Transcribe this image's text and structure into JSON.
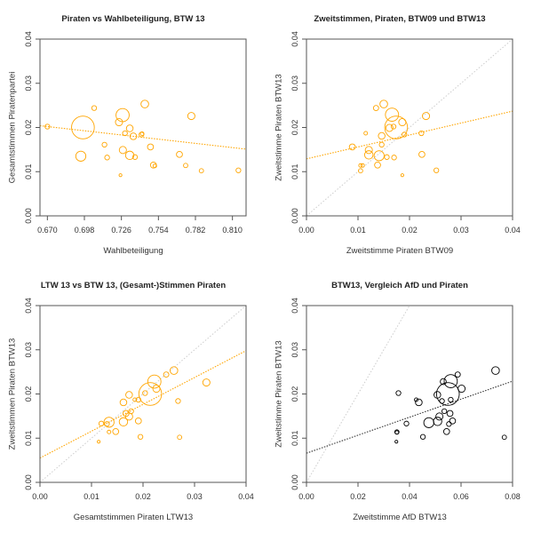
{
  "chart_data": [
    {
      "type": "scatter",
      "title": "Piraten vs Wahlbeteiligung, BTW 13",
      "xlabel": "Wahlbeteiligung",
      "ylabel": "Gesamtstimmen Piratenpartei",
      "xlim": [
        0.6644,
        0.8203
      ],
      "ylim": [
        0,
        0.04
      ],
      "xticks": [
        "0.670",
        "0.698",
        "0.726",
        "0.754",
        "0.782",
        "0.810"
      ],
      "yticks": [
        "0.00",
        "0.01",
        "0.02",
        "0.03",
        "0.04"
      ],
      "color": "#FFA500",
      "grid": false,
      "points": [
        {
          "x": 0.67,
          "y": 0.0202,
          "size": 1.0
        },
        {
          "x": 0.6969,
          "y": 0.02,
          "size": 4.75
        },
        {
          "x": 0.6953,
          "y": 0.0135,
          "size": 2.1
        },
        {
          "x": 0.7054,
          "y": 0.0244,
          "size": 1.0
        },
        {
          "x": 0.7132,
          "y": 0.0161,
          "size": 1.0
        },
        {
          "x": 0.7152,
          "y": 0.0132,
          "size": 1.0
        },
        {
          "x": 0.7242,
          "y": 0.0212,
          "size": 1.5
        },
        {
          "x": 0.7269,
          "y": 0.0228,
          "size": 2.75
        },
        {
          "x": 0.7253,
          "y": 0.0092,
          "size": 0.6
        },
        {
          "x": 0.7271,
          "y": 0.0149,
          "size": 1.5
        },
        {
          "x": 0.7287,
          "y": 0.0187,
          "size": 1.0
        },
        {
          "x": 0.7323,
          "y": 0.0198,
          "size": 1.4
        },
        {
          "x": 0.7323,
          "y": 0.0137,
          "size": 1.75
        },
        {
          "x": 0.735,
          "y": 0.018,
          "size": 1.4
        },
        {
          "x": 0.7363,
          "y": 0.0133,
          "size": 1.0
        },
        {
          "x": 0.7412,
          "y": 0.0184,
          "size": 1.0
        },
        {
          "x": 0.7417,
          "y": 0.0186,
          "size": 0.75
        },
        {
          "x": 0.7437,
          "y": 0.0253,
          "size": 1.6
        },
        {
          "x": 0.748,
          "y": 0.0156,
          "size": 1.25
        },
        {
          "x": 0.7502,
          "y": 0.0115,
          "size": 1.25
        },
        {
          "x": 0.7513,
          "y": 0.0113,
          "size": 0.75
        },
        {
          "x": 0.7699,
          "y": 0.0139,
          "size": 1.25
        },
        {
          "x": 0.7746,
          "y": 0.0114,
          "size": 0.9
        },
        {
          "x": 0.7789,
          "y": 0.0226,
          "size": 1.5
        },
        {
          "x": 0.7865,
          "y": 0.0102,
          "size": 0.9
        },
        {
          "x": 0.8145,
          "y": 0.0103,
          "size": 1.0
        }
      ],
      "trend": {
        "x": [
          0.6644,
          0.8203
        ],
        "y": [
          0.0204,
          0.0151
        ],
        "color": "#FFA500"
      },
      "reference_lines": []
    },
    {
      "type": "scatter",
      "title": "Zweitstimmen, Piraten, BTW09 und BTW13",
      "xlabel": "Zweitstimme Piraten BTW09",
      "ylabel": "Zweitstimme Piraten BTW13",
      "xlim": [
        0,
        0.04
      ],
      "ylim": [
        0,
        0.04
      ],
      "xticks": [
        "0.00",
        "0.01",
        "0.02",
        "0.03",
        "0.04"
      ],
      "yticks": [
        "0.00",
        "0.01",
        "0.02",
        "0.03",
        "0.04"
      ],
      "color": "#FFA500",
      "grid": false,
      "points": [
        {
          "x": 0.0089,
          "y": 0.0156,
          "size": 1.25
        },
        {
          "x": 0.0105,
          "y": 0.0114,
          "size": 0.75
        },
        {
          "x": 0.0109,
          "y": 0.0114,
          "size": 0.75
        },
        {
          "x": 0.0105,
          "y": 0.0102,
          "size": 0.9
        },
        {
          "x": 0.0115,
          "y": 0.0187,
          "size": 0.75
        },
        {
          "x": 0.0121,
          "y": 0.0149,
          "size": 1.5
        },
        {
          "x": 0.0121,
          "y": 0.0138,
          "size": 1.75
        },
        {
          "x": 0.0135,
          "y": 0.0244,
          "size": 1.1
        },
        {
          "x": 0.0138,
          "y": 0.0115,
          "size": 1.25
        },
        {
          "x": 0.0141,
          "y": 0.0136,
          "size": 2.1
        },
        {
          "x": 0.0146,
          "y": 0.0181,
          "size": 1.4
        },
        {
          "x": 0.0146,
          "y": 0.0161,
          "size": 1.0
        },
        {
          "x": 0.015,
          "y": 0.0253,
          "size": 1.6
        },
        {
          "x": 0.0156,
          "y": 0.0133,
          "size": 1.0
        },
        {
          "x": 0.0161,
          "y": 0.0199,
          "size": 1.5
        },
        {
          "x": 0.0166,
          "y": 0.0229,
          "size": 2.75
        },
        {
          "x": 0.0169,
          "y": 0.0202,
          "size": 1.0
        },
        {
          "x": 0.017,
          "y": 0.0132,
          "size": 1.0
        },
        {
          "x": 0.0174,
          "y": 0.02,
          "size": 4.75
        },
        {
          "x": 0.0186,
          "y": 0.0212,
          "size": 1.5
        },
        {
          "x": 0.0186,
          "y": 0.0092,
          "size": 0.6
        },
        {
          "x": 0.019,
          "y": 0.0184,
          "size": 1.0
        },
        {
          "x": 0.0223,
          "y": 0.0187,
          "size": 1.0
        },
        {
          "x": 0.0224,
          "y": 0.0139,
          "size": 1.25
        },
        {
          "x": 0.0232,
          "y": 0.0226,
          "size": 1.5
        },
        {
          "x": 0.0252,
          "y": 0.0103,
          "size": 1.0
        }
      ],
      "trend": {
        "x": [
          0,
          0.04
        ],
        "y": [
          0.0129,
          0.0237
        ],
        "color": "#FFA500"
      },
      "reference_lines": [
        {
          "x": [
            0,
            0.04
          ],
          "y": [
            0,
            0.04
          ],
          "color": "#cccccc"
        }
      ]
    },
    {
      "type": "scatter",
      "title": "LTW 13 vs BTW 13, (Gesamt-)Stimmen Piraten",
      "xlabel": "Gesamtstimmen Piraten LTW13",
      "ylabel": "Zweitstimmen Piraten BTW13",
      "xlim": [
        0,
        0.04
      ],
      "ylim": [
        0,
        0.04
      ],
      "xticks": [
        "0.00",
        "0.01",
        "0.02",
        "0.03",
        "0.04"
      ],
      "yticks": [
        "0.00",
        "0.01",
        "0.02",
        "0.03",
        "0.04"
      ],
      "color": "#FFA500",
      "grid": false,
      "points": [
        {
          "x": 0.0114,
          "y": 0.0092,
          "size": 0.6
        },
        {
          "x": 0.0119,
          "y": 0.0133,
          "size": 1.0
        },
        {
          "x": 0.013,
          "y": 0.0132,
          "size": 1.0
        },
        {
          "x": 0.0134,
          "y": 0.0136,
          "size": 2.1
        },
        {
          "x": 0.0134,
          "y": 0.0114,
          "size": 0.75
        },
        {
          "x": 0.0147,
          "y": 0.0115,
          "size": 1.25
        },
        {
          "x": 0.0162,
          "y": 0.0181,
          "size": 1.4
        },
        {
          "x": 0.0162,
          "y": 0.0137,
          "size": 1.75
        },
        {
          "x": 0.0167,
          "y": 0.0156,
          "size": 1.25
        },
        {
          "x": 0.0173,
          "y": 0.0149,
          "size": 1.5
        },
        {
          "x": 0.0173,
          "y": 0.0198,
          "size": 1.4
        },
        {
          "x": 0.0177,
          "y": 0.0161,
          "size": 1.0
        },
        {
          "x": 0.0184,
          "y": 0.0187,
          "size": 0.75
        },
        {
          "x": 0.0191,
          "y": 0.0187,
          "size": 1.0
        },
        {
          "x": 0.0191,
          "y": 0.0139,
          "size": 1.25
        },
        {
          "x": 0.0195,
          "y": 0.0103,
          "size": 1.0
        },
        {
          "x": 0.0204,
          "y": 0.0202,
          "size": 1.0
        },
        {
          "x": 0.0214,
          "y": 0.02,
          "size": 4.75
        },
        {
          "x": 0.0222,
          "y": 0.0228,
          "size": 2.75
        },
        {
          "x": 0.0226,
          "y": 0.0212,
          "size": 1.5
        },
        {
          "x": 0.0245,
          "y": 0.0244,
          "size": 1.1
        },
        {
          "x": 0.026,
          "y": 0.0253,
          "size": 1.6
        },
        {
          "x": 0.0268,
          "y": 0.0184,
          "size": 1.0
        },
        {
          "x": 0.0271,
          "y": 0.0102,
          "size": 0.9
        },
        {
          "x": 0.0323,
          "y": 0.0226,
          "size": 1.5
        }
      ],
      "trend": {
        "x": [
          0,
          0.04
        ],
        "y": [
          0.0055,
          0.0298
        ],
        "color": "#FFA500"
      },
      "reference_lines": [
        {
          "x": [
            0,
            0.04
          ],
          "y": [
            0,
            0.04
          ],
          "color": "#cccccc"
        }
      ]
    },
    {
      "type": "scatter",
      "title": "BTW13, Vergleich AfD und Piraten",
      "xlabel": "Zweitstimme AfD BTW13",
      "ylabel": "Zweitstimme Piraten BTW13",
      "xlim": [
        0,
        0.08
      ],
      "ylim": [
        0,
        0.04
      ],
      "xticks": [
        "0.00",
        "0.02",
        "0.04",
        "0.06",
        "0.08"
      ],
      "yticks": [
        "0.00",
        "0.01",
        "0.02",
        "0.03",
        "0.04"
      ],
      "color": "#000000",
      "grid": false,
      "points": [
        {
          "x": 0.0349,
          "y": 0.0092,
          "size": 0.6
        },
        {
          "x": 0.0351,
          "y": 0.0113,
          "size": 0.75
        },
        {
          "x": 0.0351,
          "y": 0.0114,
          "size": 0.9
        },
        {
          "x": 0.0357,
          "y": 0.0202,
          "size": 1.0
        },
        {
          "x": 0.0388,
          "y": 0.0133,
          "size": 1.0
        },
        {
          "x": 0.0426,
          "y": 0.0187,
          "size": 0.75
        },
        {
          "x": 0.0436,
          "y": 0.0181,
          "size": 1.4
        },
        {
          "x": 0.0452,
          "y": 0.0103,
          "size": 1.0
        },
        {
          "x": 0.0475,
          "y": 0.0135,
          "size": 2.1
        },
        {
          "x": 0.0508,
          "y": 0.0198,
          "size": 1.4
        },
        {
          "x": 0.0509,
          "y": 0.0138,
          "size": 1.75
        },
        {
          "x": 0.0516,
          "y": 0.0149,
          "size": 1.5
        },
        {
          "x": 0.0526,
          "y": 0.0184,
          "size": 1.0
        },
        {
          "x": 0.0531,
          "y": 0.0228,
          "size": 1.25
        },
        {
          "x": 0.0535,
          "y": 0.0161,
          "size": 1.0
        },
        {
          "x": 0.0544,
          "y": 0.0115,
          "size": 1.25
        },
        {
          "x": 0.0549,
          "y": 0.02,
          "size": 4.75
        },
        {
          "x": 0.0553,
          "y": 0.0132,
          "size": 1.0
        },
        {
          "x": 0.0557,
          "y": 0.0156,
          "size": 1.25
        },
        {
          "x": 0.056,
          "y": 0.0229,
          "size": 2.75
        },
        {
          "x": 0.056,
          "y": 0.0187,
          "size": 1.0
        },
        {
          "x": 0.0567,
          "y": 0.0139,
          "size": 1.25
        },
        {
          "x": 0.0587,
          "y": 0.0244,
          "size": 1.1
        },
        {
          "x": 0.0602,
          "y": 0.0212,
          "size": 1.5
        },
        {
          "x": 0.0734,
          "y": 0.0253,
          "size": 1.6
        },
        {
          "x": 0.0768,
          "y": 0.0102,
          "size": 0.9
        }
      ],
      "trend": {
        "x": [
          0,
          0.08
        ],
        "y": [
          0.0066,
          0.0229
        ],
        "color": "#333333"
      },
      "reference_lines": [
        {
          "x": [
            0,
            0.04
          ],
          "y": [
            0,
            0.04
          ],
          "color": "#cccccc"
        },
        {
          "x": [
            0,
            0.08
          ],
          "y": [
            0.04,
            0.04
          ],
          "color": "#333333"
        }
      ]
    }
  ]
}
